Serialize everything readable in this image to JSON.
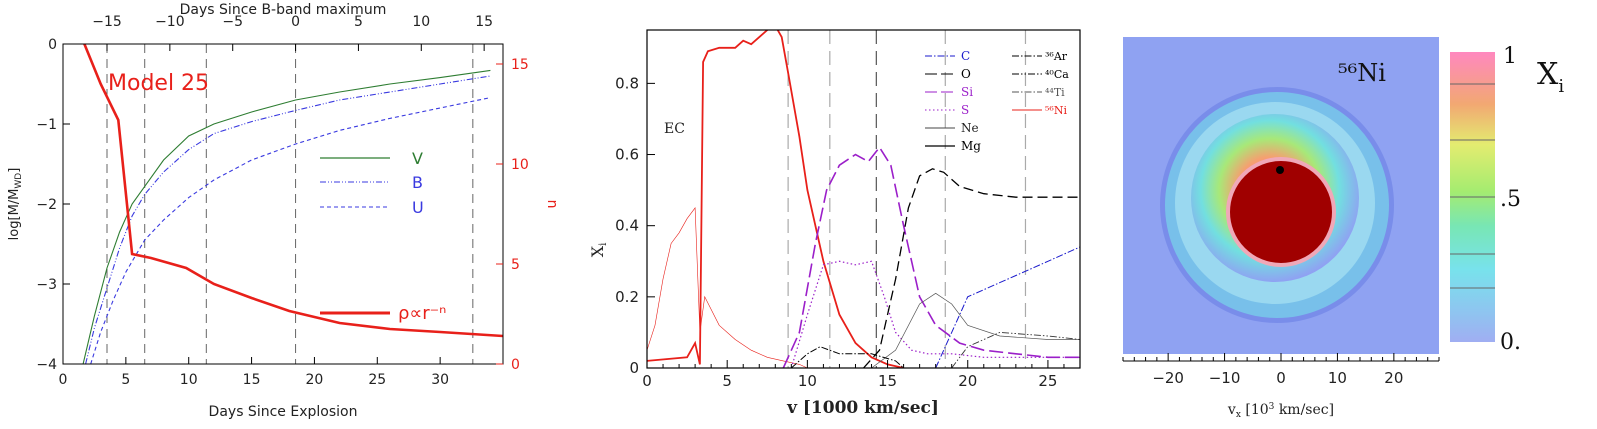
{
  "chart_data": [
    {
      "type": "line",
      "title": "",
      "annotation": "Model 25",
      "xlabel": "Days Since Explosion",
      "xlabel_top": "Days Since B-band maximum",
      "ylabel": "log[M/M",
      "ylabel_sub": "WD",
      "ylabel_suffix": "]",
      "ylabel_right": "n",
      "xlim": [
        0,
        35
      ],
      "ylim": [
        -4,
        0
      ],
      "ylim_right": [
        0,
        16
      ],
      "x_ticks": [
        "0",
        "5",
        "10",
        "15",
        "20",
        "25",
        "30"
      ],
      "x_ticks_top": [
        "−15",
        "−10",
        "−5",
        "0",
        "5",
        "10",
        "15"
      ],
      "y_ticks": [
        "0",
        "−1",
        "−2",
        "−3",
        "−4"
      ],
      "y_ticks_right": [
        "0",
        "5",
        "10",
        "15"
      ],
      "b_max_day": 18.5,
      "vertical_lines_x": [
        3.5,
        6.5,
        11.4,
        18.5,
        32.6
      ],
      "colors": {
        "V": "#2e7d32",
        "B": "#3a3ae0",
        "U": "#3a3ae0",
        "rho": "#e8201a",
        "annotation": "#e8201a"
      },
      "legend_position": "right",
      "series": [
        {
          "name": "V",
          "style": "solid",
          "x": [
            1.6,
            2.5,
            3.5,
            4.5,
            5.5,
            6.5,
            8,
            10,
            12,
            15,
            18.5,
            22,
            26,
            30,
            34
          ],
          "y": [
            -4.0,
            -3.4,
            -2.8,
            -2.35,
            -2.0,
            -1.78,
            -1.45,
            -1.15,
            -1.0,
            -0.85,
            -0.7,
            -0.6,
            -0.5,
            -0.42,
            -0.33
          ]
        },
        {
          "name": "B",
          "style": "dashdot",
          "x": [
            1.8,
            2.5,
            3.5,
            4.5,
            5.5,
            6.5,
            8,
            10,
            12,
            15,
            18.5,
            22,
            26,
            30,
            34
          ],
          "y": [
            -4.0,
            -3.55,
            -3.05,
            -2.55,
            -2.15,
            -1.88,
            -1.6,
            -1.32,
            -1.12,
            -0.97,
            -0.83,
            -0.7,
            -0.6,
            -0.5,
            -0.4
          ]
        },
        {
          "name": "U",
          "style": "dashed",
          "x": [
            2.2,
            3,
            4,
            5,
            6.5,
            8,
            10,
            12,
            15,
            18.5,
            22,
            26,
            30,
            34
          ],
          "y": [
            -4.0,
            -3.6,
            -3.2,
            -2.85,
            -2.45,
            -2.2,
            -1.92,
            -1.7,
            -1.45,
            -1.25,
            -1.08,
            -0.93,
            -0.8,
            -0.67
          ]
        },
        {
          "name": "ρ∝r⁻ⁿ",
          "style": "thick",
          "axis": "right",
          "x": [
            1.7,
            3,
            4.4,
            5.5,
            7,
            9.8,
            12,
            15,
            18,
            22,
            26,
            30,
            35
          ],
          "y": [
            16,
            14.0,
            12.2,
            5.5,
            5.3,
            4.8,
            4.0,
            3.3,
            2.65,
            2.05,
            1.75,
            1.6,
            1.4
          ]
        }
      ]
    },
    {
      "type": "line",
      "title": "",
      "annotation": "EC",
      "xlabel": "v [1000 km/sec]",
      "ylabel": "X",
      "ylabel_sub": "i",
      "xlim": [
        0,
        27
      ],
      "ylim": [
        0,
        0.95
      ],
      "x_ticks": [
        "0",
        "5",
        "10",
        "15",
        "20",
        "25"
      ],
      "y_ticks": [
        "0",
        "0.2",
        "0.4",
        "0.6",
        "0.8"
      ],
      "vertical_lines_x": [
        8.8,
        11.4,
        14.3,
        18.6,
        23.6
      ],
      "legend_position": "top-right",
      "legend_left": [
        {
          "label": "C",
          "color": "#1a1acc",
          "style": "dashdot"
        },
        {
          "label": "O",
          "color": "#000000",
          "style": "longdash"
        },
        {
          "label": "Si",
          "color": "#9b1fc9",
          "style": "longdash"
        },
        {
          "label": "S",
          "color": "#9b1fc9",
          "style": "dotted"
        },
        {
          "label": "Ne",
          "color": "#444444",
          "style": "thin"
        },
        {
          "label": "Mg",
          "color": "#000000",
          "style": "solid"
        }
      ],
      "legend_right": [
        {
          "label": "³⁶Ar",
          "color": "#000000",
          "style": "dashdot"
        },
        {
          "label": "⁴⁰Ca",
          "color": "#000000",
          "style": "dashdotdot"
        },
        {
          "label": "⁴⁴Ti",
          "color": "#555555",
          "style": "dashdot"
        },
        {
          "label": "⁵⁶Ni",
          "color": "#e8201a",
          "style": "solid"
        }
      ],
      "series": [
        {
          "name": "Ni56",
          "x": [
            0,
            2.5,
            3.0,
            3.3,
            3.5,
            3.8,
            4.5,
            5.5,
            6.0,
            6.5,
            7.0,
            7.5,
            7.9,
            8.4,
            8.8,
            9.5,
            10,
            11,
            12,
            13,
            14,
            15,
            16
          ],
          "y": [
            0.02,
            0.03,
            0.07,
            0.01,
            0.86,
            0.89,
            0.9,
            0.9,
            0.92,
            0.91,
            0.93,
            0.95,
            0.97,
            0.93,
            0.83,
            0.65,
            0.5,
            0.3,
            0.15,
            0.07,
            0.03,
            0.01,
            0.0
          ]
        },
        {
          "name": "Ni56 thin",
          "x": [
            0,
            0.5,
            1.0,
            1.5,
            2.0,
            2.5,
            3.0,
            3.3,
            3.6,
            4.5,
            5.5,
            6.5,
            7.5,
            8.5,
            9.5,
            10
          ],
          "y": [
            0.05,
            0.12,
            0.25,
            0.35,
            0.38,
            0.42,
            0.45,
            0.1,
            0.2,
            0.12,
            0.08,
            0.05,
            0.03,
            0.02,
            0.01,
            0.0
          ]
        },
        {
          "name": "Si",
          "x": [
            8.5,
            9.5,
            10.5,
            11.2,
            12,
            13,
            13.8,
            14.5,
            15.2,
            16,
            17,
            18,
            19.5,
            21,
            23,
            25,
            27
          ],
          "y": [
            0.0,
            0.1,
            0.35,
            0.5,
            0.57,
            0.6,
            0.58,
            0.62,
            0.57,
            0.4,
            0.2,
            0.12,
            0.07,
            0.05,
            0.04,
            0.03,
            0.03
          ]
        },
        {
          "name": "S",
          "x": [
            9,
            10,
            11,
            12,
            13,
            14,
            14.8,
            15.5,
            16.5,
            17.5,
            19,
            21,
            27
          ],
          "y": [
            0.0,
            0.15,
            0.29,
            0.3,
            0.29,
            0.3,
            0.2,
            0.1,
            0.05,
            0.04,
            0.04,
            0.03,
            0.03
          ]
        },
        {
          "name": "O",
          "x": [
            13.5,
            14.5,
            15.5,
            16.3,
            17,
            17.8,
            18.5,
            19.5,
            21,
            23,
            27
          ],
          "y": [
            0.0,
            0.05,
            0.25,
            0.45,
            0.54,
            0.56,
            0.55,
            0.51,
            0.49,
            0.48,
            0.48
          ]
        },
        {
          "name": "C",
          "x": [
            18,
            19,
            19.6,
            20,
            21,
            22,
            23,
            24,
            25,
            26,
            27
          ],
          "y": [
            0.0,
            0.1,
            0.16,
            0.2,
            0.22,
            0.24,
            0.26,
            0.28,
            0.3,
            0.32,
            0.34
          ]
        },
        {
          "name": "Ne",
          "x": [
            14,
            15.5,
            17,
            18,
            19,
            20,
            22,
            25,
            27
          ],
          "y": [
            0.0,
            0.05,
            0.18,
            0.21,
            0.18,
            0.12,
            0.09,
            0.08,
            0.08
          ]
        },
        {
          "name": "Mg",
          "x": [
            9,
            10,
            10.8,
            12,
            14,
            15.5,
            16,
            17
          ],
          "y": [
            0.0,
            0.04,
            0.06,
            0.04,
            0.04,
            0.02,
            0.0,
            0.0
          ]
        },
        {
          "name": "Ca",
          "x": [
            19,
            20,
            22,
            25,
            27
          ],
          "y": [
            0.0,
            0.06,
            0.1,
            0.09,
            0.08
          ]
        }
      ]
    },
    {
      "type": "heatmap",
      "title": "",
      "annotation": "⁵⁶Ni",
      "xlabel": "v",
      "xlabel_sub": "x",
      "xlabel_unit": "[10",
      "xlabel_unit_sup": "3",
      "xlabel_unit_end": " km/sec]",
      "xlim": [
        -28,
        28
      ],
      "x_ticks": [
        "−20",
        "−10",
        "0",
        "10",
        "20"
      ],
      "colorbar_label": "X",
      "colorbar_label_sub": "i",
      "colorbar_ticks": [
        "1",
        ".5",
        "0."
      ],
      "colorbar_range": [
        0,
        1
      ],
      "background_color": "#8fa2f2",
      "core_color": "#a00000"
    }
  ]
}
